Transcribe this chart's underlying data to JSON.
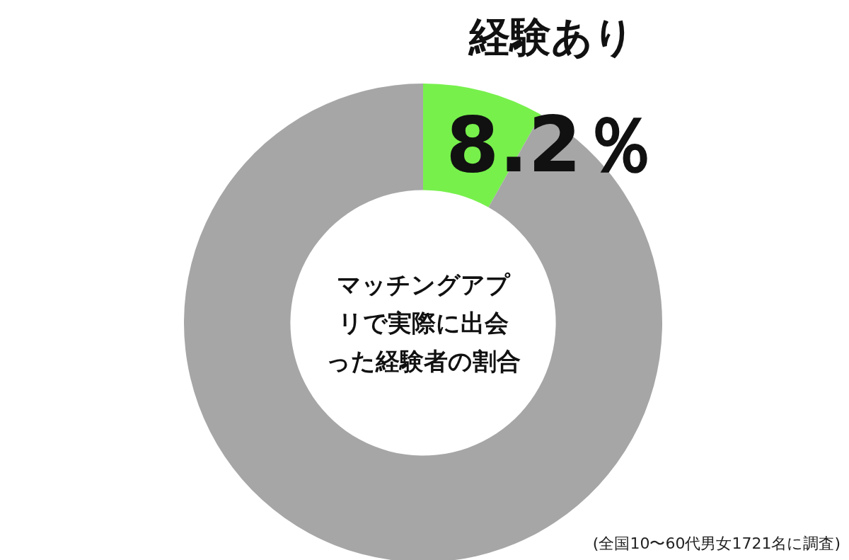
{
  "chart_data": {
    "type": "donut",
    "title": "マッチングアプリで実際に出会った経験者の割合",
    "categories": [
      "経験あり",
      null
    ],
    "values": [
      8.2,
      91.8
    ],
    "colors": [
      "#77f04c",
      "#a6a6a6"
    ],
    "value_labels": [
      "8.2％",
      null
    ],
    "annotations": [
      "(全国10〜60代男女1721名に調査)"
    ]
  }
}
